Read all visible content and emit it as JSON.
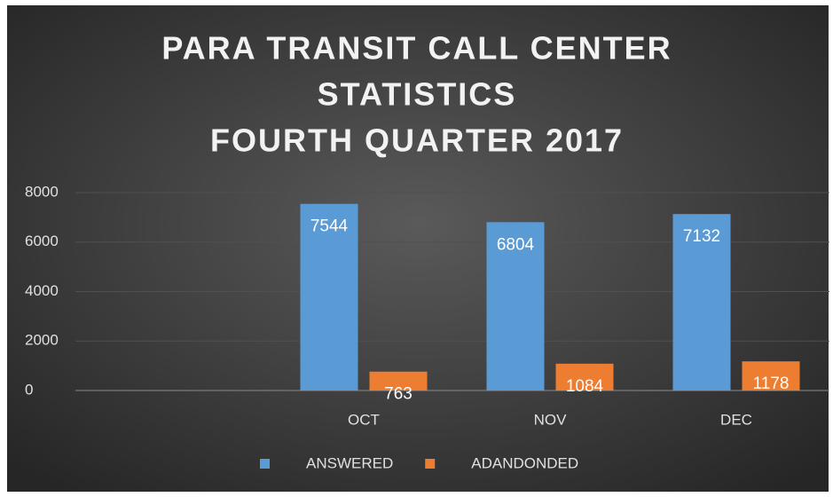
{
  "chart_data": {
    "type": "bar",
    "title": [
      "PARA TRANSIT CALL CENTER",
      "STATISTICS",
      "FOURTH QUARTER 2017"
    ],
    "categories": [
      null,
      "OCT",
      "NOV",
      "DEC"
    ],
    "series": [
      {
        "name": "ANSWERED",
        "color": "#5b9bd5",
        "values": [
          null,
          7544,
          6804,
          7132
        ]
      },
      {
        "name": "ADANDONDED",
        "color": "#ed7d31",
        "values": [
          null,
          763,
          1084,
          1178
        ]
      }
    ],
    "ylim": [
      0,
      8000
    ],
    "yticks": [
      0,
      2000,
      4000,
      6000,
      8000
    ],
    "grid": true,
    "legend": "bottom"
  }
}
